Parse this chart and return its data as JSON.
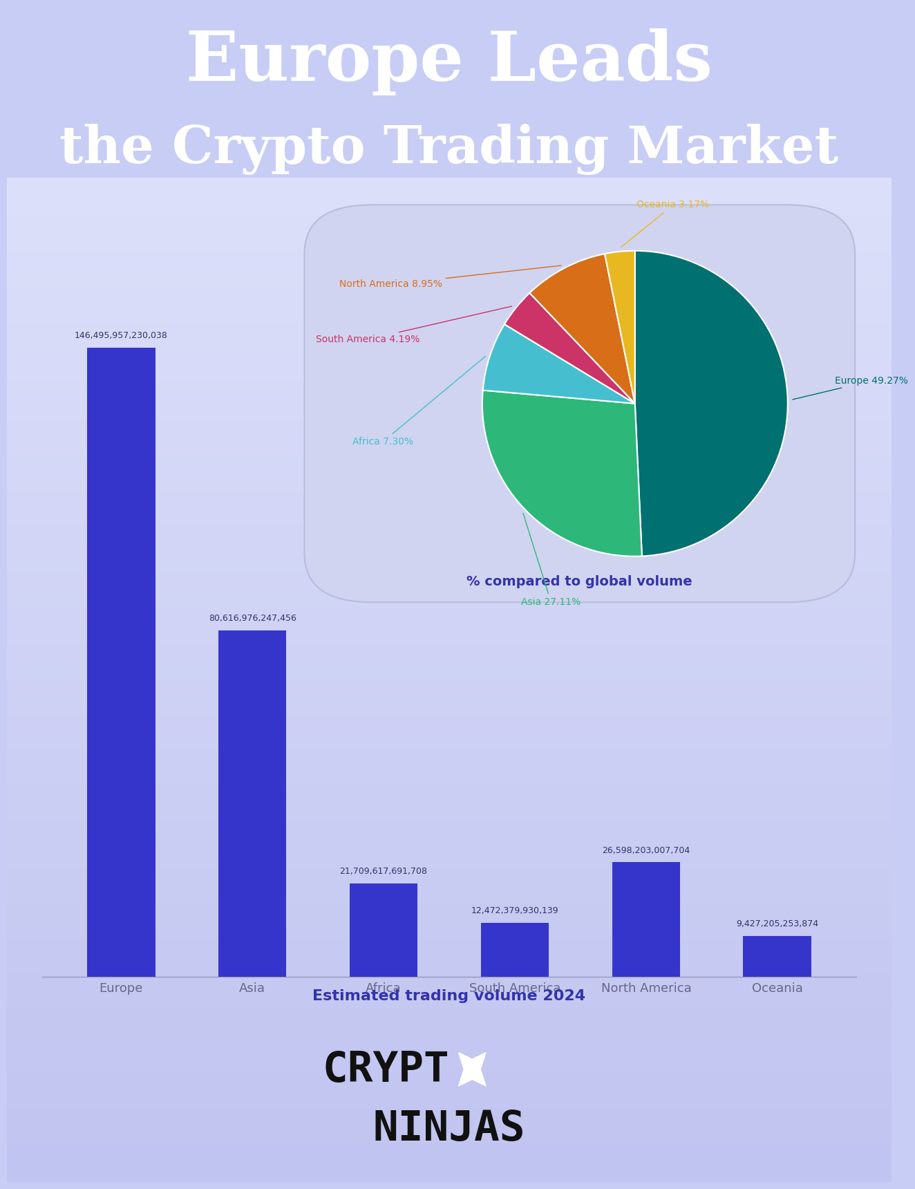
{
  "title_line1": "Europe Leads",
  "title_line2": "the Crypto Trading Market",
  "title_bg_color": "#4848e8",
  "title_text_color": "#ffffff",
  "bg_color_top": "#e8eaf8",
  "bg_color_bottom": "#c8cdf5",
  "categories": [
    "Europe",
    "Asia",
    "Africa",
    "South America",
    "North America",
    "Oceania"
  ],
  "values": [
    146495957230038,
    80616976247456,
    21709617691708,
    12472379930139,
    26598203007704,
    9427205253874
  ],
  "value_labels": [
    "146,495,957,230,038",
    "80,616,976,247,456",
    "21,709,617,691,708",
    "12,472,379,930,139",
    "26,598,203,007,704",
    "9,427,205,253,874"
  ],
  "bar_color": "#3535cc",
  "xlabel": "Estimated trading volume 2024",
  "xlabel_color": "#3333aa",
  "pie_colors": [
    "#007070",
    "#2db87a",
    "#45bfcf",
    "#cc3366",
    "#d96e18",
    "#e8b820"
  ],
  "pie_label_texts": [
    "Europe 49.27%",
    "Asia 27.11%",
    "Africa 7.30%",
    "South America 4.19%",
    "North America 8.95%",
    "Oceania 3.17%"
  ],
  "pie_label_colors": [
    "#007070",
    "#2db87a",
    "#45bfcf",
    "#cc3366",
    "#d96e18",
    "#e8b820"
  ],
  "pie_card_color": "#d0d4f0",
  "pie_subtitle": "% compared to global volume",
  "pie_subtitle_color": "#3333aa",
  "logo_box_color": "#4848e8"
}
